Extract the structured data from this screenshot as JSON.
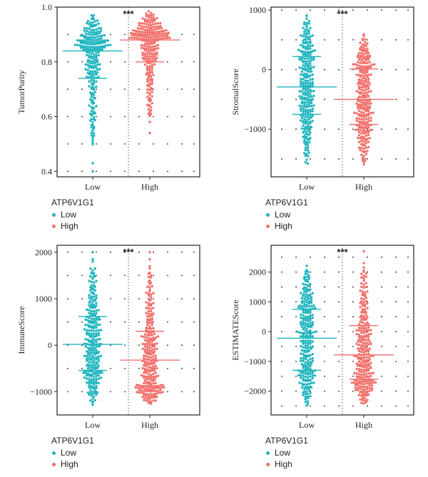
{
  "chart_data": [
    {
      "type": "scatter",
      "subtype": "beeswarm",
      "ylabel": "TumorPurity",
      "categories": [
        "Low",
        "High"
      ],
      "ylim": [
        0.38,
        1.0
      ],
      "yticks": [
        0.4,
        0.6,
        0.8,
        1.0
      ],
      "ytick_labels": [
        "0.4",
        "0.6",
        "0.8",
        "1.0"
      ],
      "significance": "***",
      "grid": "dotted",
      "legend_title": "ATP6V1G1",
      "series": [
        {
          "name": "Low",
          "color": "#1fb5bf",
          "n": 240,
          "median": 0.84,
          "q1": 0.74,
          "q3": 0.88,
          "min": 0.4,
          "max": 0.98,
          "bottom_tail": [
            0.4,
            0.43,
            0.53,
            0.56,
            0.59,
            0.61
          ]
        },
        {
          "name": "High",
          "color": "#f26f6a",
          "n": 240,
          "median": 0.88,
          "q1": 0.8,
          "q3": 0.91,
          "min": 0.54,
          "max": 0.99,
          "bottom_tail": [
            0.54,
            0.58,
            0.61,
            0.64
          ]
        }
      ]
    },
    {
      "type": "scatter",
      "subtype": "beeswarm",
      "ylabel": "StromalScore",
      "categories": [
        "Low",
        "High"
      ],
      "ylim": [
        -1800,
        1050
      ],
      "yticks": [
        -1000,
        0,
        1000
      ],
      "ytick_labels": [
        "−1000",
        "0",
        "1000"
      ],
      "significance": "***",
      "grid": "dotted",
      "legend_title": "ATP6V1G1",
      "series": [
        {
          "name": "Low",
          "color": "#1fb5bf",
          "n": 260,
          "median": -290,
          "q1": -750,
          "q3": 220,
          "min": -1650,
          "max": 980
        },
        {
          "name": "High",
          "color": "#f26f6a",
          "n": 260,
          "median": -500,
          "q1": -920,
          "q3": 10,
          "min": -1650,
          "max": 630
        }
      ]
    },
    {
      "type": "scatter",
      "subtype": "beeswarm",
      "ylabel": "ImmuneScore",
      "categories": [
        "Low",
        "High"
      ],
      "ylim": [
        -1500,
        2150
      ],
      "yticks": [
        -1000,
        0,
        1000,
        2000
      ],
      "ytick_labels": [
        "−1000",
        "0",
        "1000",
        "2000"
      ],
      "significance": "***",
      "grid": "dotted",
      "legend_title": "ATP6V1G1",
      "series": [
        {
          "name": "Low",
          "color": "#1fb5bf",
          "n": 260,
          "median": 20,
          "q1": -540,
          "q3": 620,
          "min": -1350,
          "max": 2000,
          "top_tail": [
            1550,
            1650,
            1800,
            1850,
            2000
          ]
        },
        {
          "name": "High",
          "color": "#f26f6a",
          "n": 260,
          "median": -320,
          "q1": -870,
          "q3": 300,
          "min": -1300,
          "max": 2000,
          "top_tail": [
            1500,
            1650,
            1700,
            1850,
            2000
          ]
        }
      ]
    },
    {
      "type": "scatter",
      "subtype": "beeswarm",
      "ylabel": "ESTIMATEScore",
      "categories": [
        "Low",
        "High"
      ],
      "ylim": [
        -2800,
        2900
      ],
      "yticks": [
        -2000,
        -1000,
        0,
        1000,
        2000
      ],
      "ytick_labels": [
        "−2000",
        "−1000",
        "0",
        "1000",
        "2000"
      ],
      "significance": "***",
      "grid": "dotted",
      "legend_title": "ATP6V1G1",
      "series": [
        {
          "name": "Low",
          "color": "#1fb5bf",
          "n": 260,
          "median": -220,
          "q1": -1300,
          "q3": 750,
          "min": -2600,
          "max": 2300
        },
        {
          "name": "High",
          "color": "#f26f6a",
          "n": 260,
          "median": -780,
          "q1": -1600,
          "q3": 200,
          "min": -2500,
          "max": 2700,
          "top_tail": [
            1800,
            1950,
            2300,
            2700
          ]
        }
      ]
    }
  ]
}
